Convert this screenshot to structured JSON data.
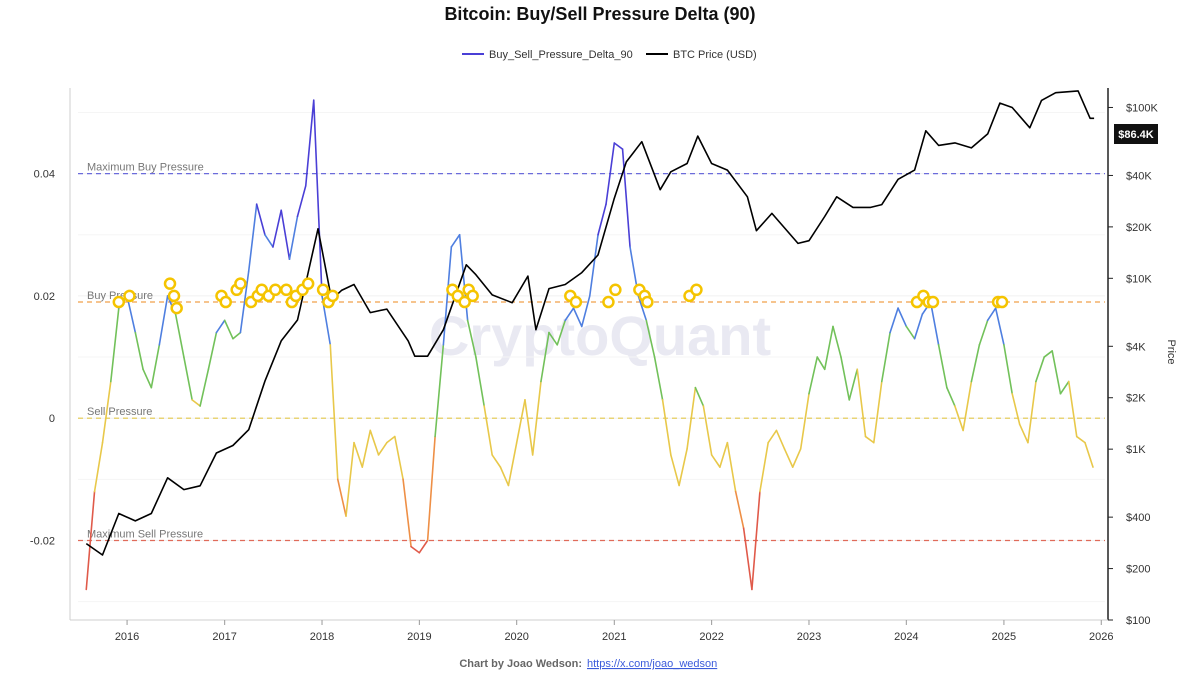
{
  "chart_data": {
    "type": "line",
    "title": "Bitcoin: Buy/Sell Pressure Delta (90)",
    "legend": {
      "placement": "top-center",
      "entries": [
        {
          "name": "Buy_Sell_Pressure_Delta_90",
          "color": "#4a3fd6"
        },
        {
          "name": "BTC Price (USD)",
          "color": "#000000"
        }
      ]
    },
    "x_axis": {
      "type": "date",
      "range": [
        "2015-07-01",
        "2026-01-15"
      ],
      "tick_labels": [
        "2016",
        "2017",
        "2018",
        "2019",
        "2020",
        "2021",
        "2022",
        "2023",
        "2024",
        "2025",
        "2026"
      ]
    },
    "y_axis_left": {
      "range": [
        -0.033,
        0.054
      ],
      "tick_values": [
        0.04,
        0.02,
        0,
        -0.02
      ],
      "tick_labels": [
        "0.04",
        "0.02",
        "0",
        "-0.02"
      ]
    },
    "y_axis_right": {
      "label": "Price",
      "scale": "log",
      "range": [
        100,
        130000
      ],
      "tick_values": [
        100,
        200,
        400,
        1000,
        2000,
        4000,
        10000,
        20000,
        40000,
        100000
      ],
      "tick_labels": [
        "$100",
        "$200",
        "$400",
        "$1K",
        "$2K",
        "$4K",
        "$10K",
        "$20K",
        "$40K",
        "$100K"
      ]
    },
    "grid": true,
    "reference_lines": [
      {
        "label": "Maximum Buy Pressure",
        "value": 0.04,
        "color": "#6b6bdb"
      },
      {
        "label": "Buy Pressure",
        "value": 0.019,
        "color": "#f0a04b"
      },
      {
        "label": "Sell Pressure",
        "value": 0,
        "color": "#e3c84a"
      },
      {
        "label": "Maximum Sell Pressure",
        "value": -0.02,
        "color": "#e06b5a"
      }
    ],
    "color_bands": [
      {
        "min": 0.03,
        "color": "#4a3fd6"
      },
      {
        "min": 0.015,
        "color": "#4f7fe0"
      },
      {
        "min": 0.003,
        "color": "#72c15a"
      },
      {
        "min": -0.01,
        "color": "#e8c84a"
      },
      {
        "min": -0.017,
        "color": "#ee8f46"
      },
      {
        "min": -1,
        "color": "#e05a4a"
      }
    ],
    "series": [
      {
        "name": "Buy_Sell_Pressure_Delta_90",
        "x": [
          "2015-08-01",
          "2015-09-01",
          "2015-10-01",
          "2015-11-01",
          "2015-12-01",
          "2016-01-01",
          "2016-02-01",
          "2016-03-01",
          "2016-04-01",
          "2016-05-01",
          "2016-06-01",
          "2016-07-01",
          "2016-08-01",
          "2016-09-01",
          "2016-10-01",
          "2016-11-01",
          "2016-12-01",
          "2017-01-01",
          "2017-02-01",
          "2017-03-01",
          "2017-04-01",
          "2017-05-01",
          "2017-06-01",
          "2017-07-01",
          "2017-08-01",
          "2017-09-01",
          "2017-10-01",
          "2017-11-01",
          "2017-12-01",
          "2018-01-01",
          "2018-02-01",
          "2018-03-01",
          "2018-04-01",
          "2018-05-01",
          "2018-06-01",
          "2018-07-01",
          "2018-08-01",
          "2018-09-01",
          "2018-10-01",
          "2018-11-01",
          "2018-12-01",
          "2019-01-01",
          "2019-02-01",
          "2019-03-01",
          "2019-04-01",
          "2019-05-01",
          "2019-06-01",
          "2019-07-01",
          "2019-08-01",
          "2019-09-01",
          "2019-10-01",
          "2019-11-01",
          "2019-12-01",
          "2020-01-01",
          "2020-02-01",
          "2020-03-01",
          "2020-04-01",
          "2020-05-01",
          "2020-06-01",
          "2020-07-01",
          "2020-08-01",
          "2020-09-01",
          "2020-10-01",
          "2020-11-01",
          "2020-12-01",
          "2021-01-01",
          "2021-02-01",
          "2021-03-01",
          "2021-04-01",
          "2021-05-01",
          "2021-06-01",
          "2021-07-01",
          "2021-08-01",
          "2021-09-01",
          "2021-10-01",
          "2021-11-01",
          "2021-12-01",
          "2022-01-01",
          "2022-02-01",
          "2022-03-01",
          "2022-04-01",
          "2022-05-01",
          "2022-06-01",
          "2022-07-01",
          "2022-08-01",
          "2022-09-01",
          "2022-10-01",
          "2022-11-01",
          "2022-12-01",
          "2023-01-01",
          "2023-02-01",
          "2023-03-01",
          "2023-04-01",
          "2023-05-01",
          "2023-06-01",
          "2023-07-01",
          "2023-08-01",
          "2023-09-01",
          "2023-10-01",
          "2023-11-01",
          "2023-12-01",
          "2024-01-01",
          "2024-02-01",
          "2024-03-01",
          "2024-04-01",
          "2024-05-01",
          "2024-06-01",
          "2024-07-01",
          "2024-08-01",
          "2024-09-01",
          "2024-10-01",
          "2024-11-01",
          "2024-12-01",
          "2025-01-01",
          "2025-02-01",
          "2025-03-01",
          "2025-04-01",
          "2025-05-01",
          "2025-06-01",
          "2025-07-01",
          "2025-08-01",
          "2025-09-01",
          "2025-10-01",
          "2025-11-01",
          "2025-12-01"
        ],
        "values": [
          -0.028,
          -0.012,
          -0.004,
          0.006,
          0.018,
          0.02,
          0.014,
          0.008,
          0.005,
          0.012,
          0.02,
          0.017,
          0.01,
          0.003,
          0.002,
          0.008,
          0.014,
          0.016,
          0.013,
          0.014,
          0.024,
          0.035,
          0.03,
          0.028,
          0.034,
          0.026,
          0.033,
          0.038,
          0.052,
          0.02,
          0.012,
          -0.01,
          -0.016,
          -0.004,
          -0.008,
          -0.002,
          -0.006,
          -0.004,
          -0.003,
          -0.01,
          -0.021,
          -0.022,
          -0.02,
          -0.003,
          0.012,
          0.028,
          0.03,
          0.016,
          0.01,
          0.002,
          -0.006,
          -0.008,
          -0.011,
          -0.004,
          0.003,
          -0.006,
          0.006,
          0.014,
          0.012,
          0.016,
          0.018,
          0.015,
          0.02,
          0.03,
          0.035,
          0.045,
          0.044,
          0.028,
          0.02,
          0.016,
          0.01,
          0.003,
          -0.006,
          -0.011,
          -0.005,
          0.005,
          0.002,
          -0.006,
          -0.008,
          -0.004,
          -0.012,
          -0.018,
          -0.028,
          -0.012,
          -0.004,
          -0.002,
          -0.005,
          -0.008,
          -0.005,
          0.004,
          0.01,
          0.008,
          0.015,
          0.01,
          0.003,
          0.008,
          -0.003,
          -0.004,
          0.006,
          0.014,
          0.018,
          0.015,
          0.013,
          0.017,
          0.019,
          0.012,
          0.005,
          0.002,
          -0.002,
          0.006,
          0.012,
          0.016,
          0.018,
          0.012,
          0.004,
          -0.001,
          -0.004,
          0.006,
          0.01,
          0.011,
          0.004,
          0.006,
          -0.003,
          -0.004,
          -0.008
        ]
      },
      {
        "name": "BTC Price (USD)",
        "x": [
          "2015-08-01",
          "2015-10-01",
          "2015-12-01",
          "2016-02-01",
          "2016-04-01",
          "2016-06-01",
          "2016-08-01",
          "2016-10-01",
          "2016-12-01",
          "2017-02-01",
          "2017-04-01",
          "2017-06-01",
          "2017-08-01",
          "2017-10-01",
          "2017-12-17",
          "2018-02-06",
          "2018-03-15",
          "2018-05-01",
          "2018-07-01",
          "2018-09-01",
          "2018-11-20",
          "2018-12-15",
          "2019-02-01",
          "2019-04-01",
          "2019-06-26",
          "2019-08-01",
          "2019-10-01",
          "2019-12-15",
          "2020-02-12",
          "2020-03-13",
          "2020-05-01",
          "2020-07-01",
          "2020-09-01",
          "2020-11-01",
          "2020-12-31",
          "2021-02-15",
          "2021-04-14",
          "2021-06-22",
          "2021-08-01",
          "2021-10-01",
          "2021-11-10",
          "2022-01-01",
          "2022-03-01",
          "2022-05-15",
          "2022-06-18",
          "2022-08-15",
          "2022-11-21",
          "2023-01-01",
          "2023-03-01",
          "2023-04-15",
          "2023-06-15",
          "2023-08-20",
          "2023-10-01",
          "2023-12-01",
          "2024-02-01",
          "2024-03-14",
          "2024-05-01",
          "2024-07-01",
          "2024-09-01",
          "2024-11-01",
          "2024-12-17",
          "2025-02-01",
          "2025-04-08",
          "2025-05-22",
          "2025-07-14",
          "2025-08-14",
          "2025-10-06",
          "2025-11-20",
          "2025-12-05"
        ],
        "values": [
          280,
          240,
          420,
          380,
          420,
          680,
          580,
          610,
          950,
          1050,
          1300,
          2500,
          4300,
          5700,
          19500,
          7500,
          8500,
          9200,
          6300,
          6600,
          4300,
          3500,
          3500,
          5000,
          12000,
          10500,
          8000,
          7200,
          10300,
          5000,
          8700,
          9200,
          10800,
          13700,
          29000,
          48000,
          63000,
          33000,
          42000,
          47000,
          68000,
          47000,
          43000,
          30000,
          19000,
          24000,
          16000,
          16600,
          23000,
          30000,
          26000,
          26000,
          27000,
          38000,
          43000,
          73000,
          60000,
          62000,
          58000,
          70000,
          106000,
          100000,
          76000,
          110000,
          122000,
          123000,
          125000,
          86400,
          86400
        ]
      }
    ],
    "highlight_markers": {
      "description": "",
      "color": "#f5c400",
      "x": [
        "2015-12-01",
        "2016-01-10",
        "2016-06-10",
        "2016-06-25",
        "2016-07-05",
        "2016-12-20",
        "2017-01-05",
        "2017-02-15",
        "2017-03-01",
        "2017-04-10",
        "2017-05-05",
        "2017-05-20",
        "2017-06-15",
        "2017-07-10",
        "2017-08-20",
        "2017-09-10",
        "2017-09-25",
        "2017-10-20",
        "2017-11-10",
        "2018-01-05",
        "2018-01-25",
        "2018-02-10",
        "2019-05-05",
        "2019-05-25",
        "2019-06-20",
        "2019-07-05",
        "2019-07-20",
        "2020-07-20",
        "2020-08-10",
        "2020-12-10",
        "2021-01-05",
        "2021-04-05",
        "2021-04-25",
        "2021-05-05",
        "2021-10-10",
        "2021-11-05",
        "2024-02-10",
        "2024-03-05",
        "2024-03-25",
        "2024-04-10",
        "2024-12-10",
        "2024-12-25"
      ],
      "values": [
        0.019,
        0.02,
        0.022,
        0.02,
        0.018,
        0.02,
        0.019,
        0.021,
        0.022,
        0.019,
        0.02,
        0.021,
        0.02,
        0.021,
        0.021,
        0.019,
        0.02,
        0.021,
        0.022,
        0.021,
        0.019,
        0.02,
        0.021,
        0.02,
        0.019,
        0.021,
        0.02,
        0.02,
        0.019,
        0.019,
        0.021,
        0.021,
        0.02,
        0.019,
        0.02,
        0.021,
        0.019,
        0.02,
        0.019,
        0.019,
        0.019,
        0.019
      ]
    },
    "price_badge": "$86.4K",
    "watermark": "CryptoQuant",
    "footer": {
      "credit": "Chart by Joao Wedson:",
      "link": "https://x.com/joao_wedson"
    }
  }
}
